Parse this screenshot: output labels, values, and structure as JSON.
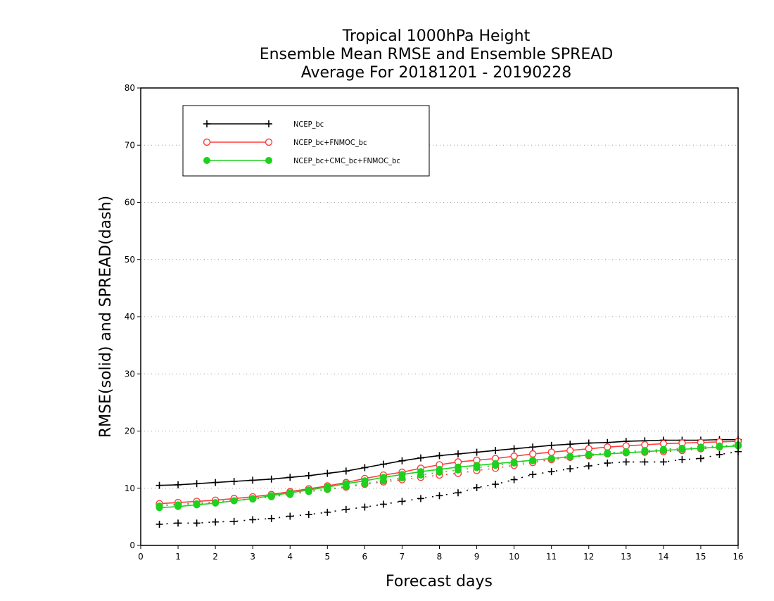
{
  "chart_data": {
    "type": "line",
    "title": [
      "Tropical 1000hPa Height",
      "Ensemble Mean RMSE and Ensemble SPREAD",
      "Average For 20181201 - 20190228"
    ],
    "xlabel": "Forecast days",
    "ylabel": "RMSE(solid) and SPREAD(dash)",
    "xlim": [
      0,
      16
    ],
    "ylim": [
      0,
      80
    ],
    "xticks": [
      0,
      1,
      2,
      3,
      4,
      5,
      6,
      7,
      8,
      9,
      10,
      11,
      12,
      13,
      14,
      15,
      16
    ],
    "yticks": [
      0,
      10,
      20,
      30,
      40,
      50,
      60,
      70,
      80
    ],
    "grid": "horizontal dotted",
    "legend_position": "top-left",
    "x": [
      0.5,
      1,
      1.5,
      2,
      2.5,
      3,
      3.5,
      4,
      4.5,
      5,
      5.5,
      6,
      6.5,
      7,
      7.5,
      8,
      8.5,
      9,
      9.5,
      10,
      10.5,
      11,
      11.5,
      12,
      12.5,
      13,
      13.5,
      14,
      14.5,
      15,
      15.5,
      16
    ],
    "series": [
      {
        "name": "NCEP_bc",
        "color": "#000000",
        "marker": "plus",
        "rmse": [
          10.5,
          10.6,
          10.8,
          11.0,
          11.2,
          11.4,
          11.6,
          11.9,
          12.2,
          12.6,
          13.0,
          13.6,
          14.2,
          14.8,
          15.3,
          15.7,
          16.0,
          16.3,
          16.6,
          16.9,
          17.2,
          17.5,
          17.7,
          17.9,
          18.0,
          18.2,
          18.3,
          18.4,
          18.4,
          18.4,
          18.5,
          18.5
        ],
        "spread": [
          3.7,
          3.9,
          3.9,
          4.1,
          4.2,
          4.5,
          4.7,
          5.1,
          5.4,
          5.8,
          6.3,
          6.7,
          7.2,
          7.7,
          8.2,
          8.7,
          9.2,
          10.1,
          10.7,
          11.5,
          12.4,
          12.9,
          13.4,
          13.9,
          14.4,
          14.6,
          14.6,
          14.6,
          15.0,
          15.2,
          15.9,
          16.4
        ]
      },
      {
        "name": "NCEP_bc+FNMOC_bc",
        "color": "#ff3b3b",
        "marker": "open-circle",
        "rmse": [
          7.3,
          7.5,
          7.7,
          7.9,
          8.2,
          8.5,
          8.9,
          9.4,
          9.9,
          10.4,
          11.0,
          11.7,
          12.3,
          12.8,
          13.5,
          14.1,
          14.6,
          14.9,
          15.2,
          15.6,
          16.0,
          16.3,
          16.6,
          16.9,
          17.2,
          17.4,
          17.6,
          17.8,
          17.9,
          18.0,
          18.1,
          18.2
        ],
        "spread": [
          7.0,
          7.2,
          7.4,
          7.6,
          7.9,
          8.2,
          8.6,
          9.1,
          9.5,
          9.8,
          10.2,
          10.7,
          11.1,
          11.5,
          11.9,
          12.3,
          12.6,
          13.1,
          13.5,
          14.0,
          14.5,
          15.0,
          15.4,
          15.7,
          16.0,
          16.2,
          16.3,
          16.4,
          16.6,
          16.9,
          17.2,
          17.5
        ]
      },
      {
        "name": "NCEP_bc+CMC_bc+FNMOC_bc",
        "color": "#1ed11e",
        "marker": "filled-circle",
        "rmse": [
          6.6,
          6.8,
          7.1,
          7.4,
          7.8,
          8.2,
          8.7,
          9.2,
          9.7,
          10.2,
          10.8,
          11.3,
          11.9,
          12.4,
          12.9,
          13.3,
          13.7,
          14.0,
          14.3,
          14.6,
          14.9,
          15.2,
          15.5,
          15.8,
          16.0,
          16.2,
          16.4,
          16.6,
          16.8,
          17.0,
          17.2,
          17.4
        ],
        "spread": [
          6.9,
          7.1,
          7.3,
          7.5,
          7.8,
          8.1,
          8.5,
          8.9,
          9.4,
          9.8,
          10.3,
          10.8,
          11.3,
          11.8,
          12.3,
          12.8,
          13.2,
          13.6,
          14.0,
          14.4,
          14.8,
          15.2,
          15.6,
          15.9,
          16.2,
          16.4,
          16.6,
          16.8,
          17.0,
          17.2,
          17.4,
          17.6
        ]
      }
    ]
  }
}
